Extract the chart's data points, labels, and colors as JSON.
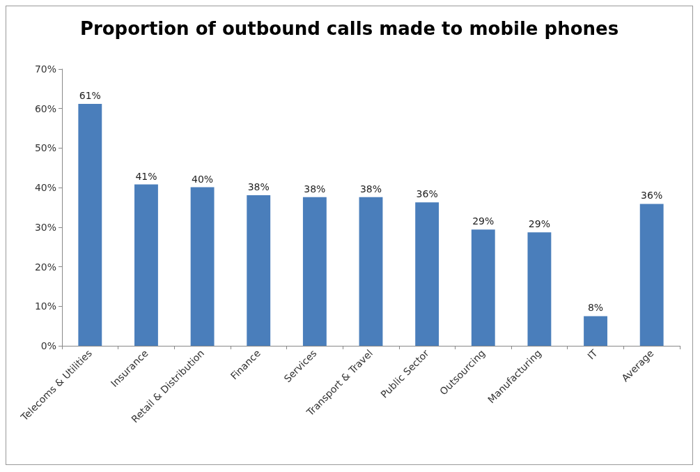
{
  "chart_data": {
    "type": "bar",
    "title": "Proportion of outbound calls made to mobile phones",
    "categories": [
      "Telecoms & Utilities",
      "Insurance",
      "Retail & Distribution",
      "Finance",
      "Services",
      "Transport & Travel",
      "Public Sector",
      "Outsourcing",
      "Manufacturing",
      "IT",
      "Average"
    ],
    "values": [
      61.2,
      40.8,
      40.1,
      38.1,
      37.6,
      37.6,
      36.3,
      29.4,
      28.7,
      7.5,
      35.9
    ],
    "value_labels": [
      "61%",
      "41%",
      "40%",
      "38%",
      "38%",
      "38%",
      "36%",
      "29%",
      "29%",
      "8%",
      "36%"
    ],
    "color": "#4a7ebb",
    "ylim": [
      0,
      70
    ],
    "yticks": [
      {
        "value": 0,
        "label": "0%"
      },
      {
        "value": 10,
        "label": "10%"
      },
      {
        "value": 20,
        "label": "20%"
      },
      {
        "value": 30,
        "label": "30%"
      },
      {
        "value": 40,
        "label": "40%"
      },
      {
        "value": 50,
        "label": "50%"
      },
      {
        "value": 60,
        "label": "60%"
      },
      {
        "value": 70,
        "label": "70%"
      }
    ],
    "grid": false
  }
}
